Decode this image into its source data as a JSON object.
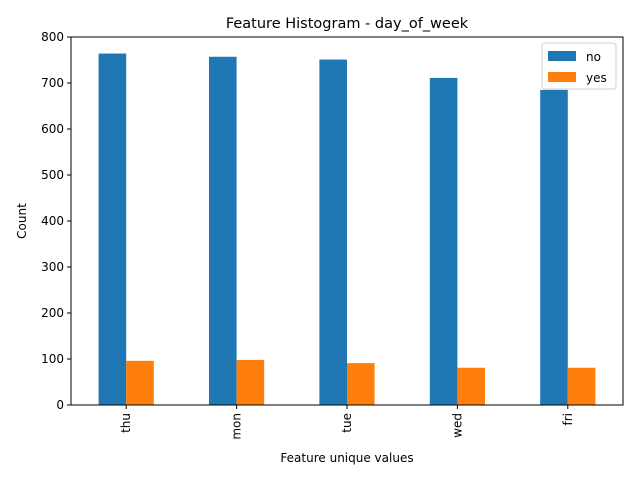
{
  "chart_data": {
    "type": "bar",
    "title": "Feature Histogram - day_of_week",
    "xlabel": "Feature unique values",
    "ylabel": "Count",
    "categories": [
      "thu",
      "mon",
      "tue",
      "wed",
      "fri"
    ],
    "series": [
      {
        "name": "no",
        "color": "#1f77b4",
        "values": [
          764,
          757,
          751,
          711,
          685
        ]
      },
      {
        "name": "yes",
        "color": "#ff7f0e",
        "values": [
          96,
          98,
          91,
          81,
          81
        ]
      }
    ],
    "ylim": [
      0,
      800
    ],
    "yticks": [
      0,
      100,
      200,
      300,
      400,
      500,
      600,
      700,
      800
    ],
    "legend": "top-right",
    "grid": false
  }
}
